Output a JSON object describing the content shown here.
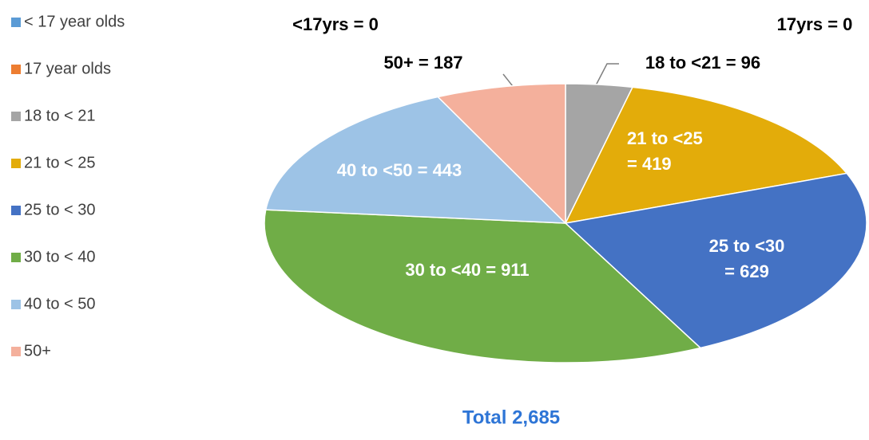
{
  "chart_data": {
    "type": "pie",
    "categories": [
      "< 17 year olds",
      "17 year olds",
      "18 to < 21",
      "21 to < 25",
      "25 to < 30",
      "30 to < 40",
      "40 to < 50",
      "50+"
    ],
    "values": [
      0,
      0,
      96,
      419,
      629,
      911,
      443,
      187
    ],
    "value_labels": [
      "<17yrs = 0",
      "17yrs = 0",
      "18 to <21 = 96",
      "21 to <25 = 419",
      "25 to <30 = 629",
      "30 to <40 = 911",
      "40 to <50 = 443",
      "50+ = 187"
    ],
    "colors": [
      "#5b9bd5",
      "#ed7d31",
      "#a5a5a5",
      "#e3ac0a",
      "#4472c4",
      "#70ad47",
      "#9dc3e6",
      "#f4b09c"
    ],
    "legend": "left",
    "annotation": "Total 2,685"
  }
}
